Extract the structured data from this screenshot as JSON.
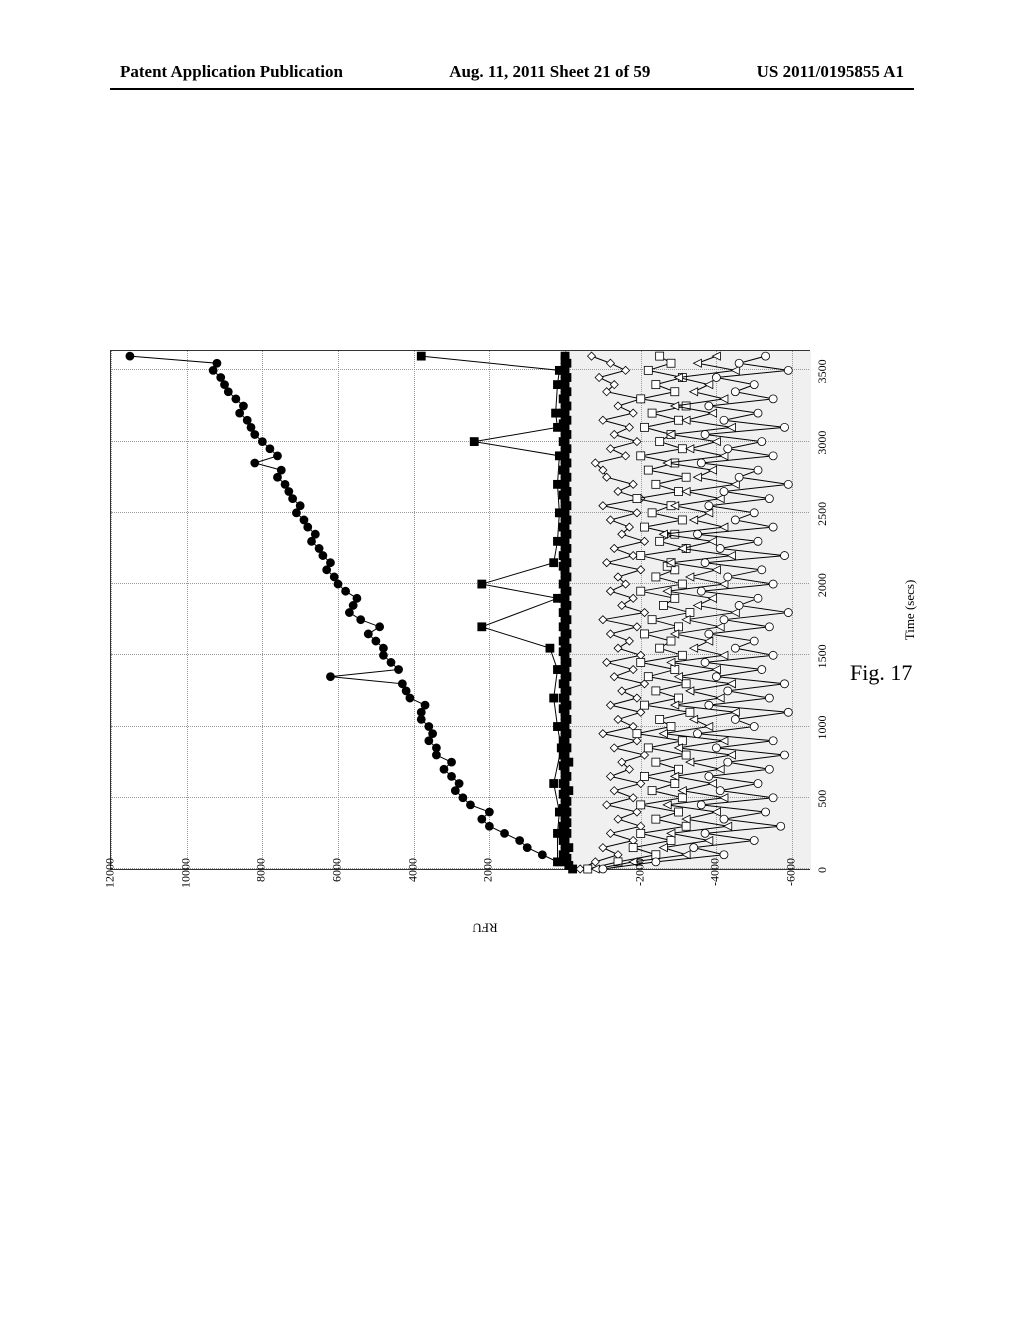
{
  "header": {
    "left": "Patent Application Publication",
    "center": "Aug. 11, 2011  Sheet 21 of 59",
    "right": "US 2011/0195855 A1"
  },
  "figure_label": "Fig. 17",
  "chart": {
    "type": "line",
    "xlabel": "Time (secs)",
    "ylabel": "RFU",
    "xlim": [
      0,
      3650
    ],
    "ylim": [
      -6500,
      12000
    ],
    "xticks": [
      0,
      500,
      1000,
      1500,
      2000,
      2500,
      3000,
      3500
    ],
    "yticks": [
      -6000,
      -4000,
      -2000,
      0,
      2000,
      4000,
      6000,
      8000,
      10000,
      12000
    ],
    "background_color": "#ffffff",
    "band_color": "#f0f0f0",
    "grid_color": "#999999",
    "label_fontsize": 13,
    "tick_fontsize": 12,
    "line_color": "#000000",
    "line_width": 1,
    "marker_size": 4,
    "band_region": [
      -6500,
      0
    ],
    "series": [
      {
        "name": "series_filled_circle",
        "marker": "filled-circle",
        "fill": "#000000",
        "x": [
          50,
          100,
          150,
          200,
          250,
          300,
          350,
          400,
          450,
          500,
          550,
          600,
          650,
          700,
          750,
          800,
          850,
          900,
          950,
          1000,
          1050,
          1100,
          1150,
          1200,
          1250,
          1300,
          1350,
          1400,
          1450,
          1500,
          1550,
          1600,
          1650,
          1700,
          1750,
          1800,
          1850,
          1900,
          1950,
          2000,
          2050,
          2100,
          2150,
          2200,
          2250,
          2300,
          2350,
          2400,
          2450,
          2500,
          2550,
          2600,
          2650,
          2700,
          2750,
          2800,
          2850,
          2900,
          2950,
          3000,
          3050,
          3100,
          3150,
          3200,
          3250,
          3300,
          3350,
          3400,
          3450,
          3500,
          3550,
          3600
        ],
        "y": [
          200,
          600,
          1000,
          1200,
          1600,
          2000,
          2200,
          2000,
          2500,
          2700,
          2900,
          2800,
          3000,
          3200,
          3000,
          3400,
          3400,
          3600,
          3500,
          3600,
          3800,
          3800,
          3700,
          4100,
          4200,
          4300,
          6200,
          4400,
          4600,
          4800,
          4800,
          5000,
          5200,
          4900,
          5400,
          5700,
          5600,
          5500,
          5800,
          6000,
          6100,
          6300,
          6200,
          6400,
          6500,
          6700,
          6600,
          6800,
          6900,
          7100,
          7000,
          7200,
          7300,
          7400,
          7600,
          7500,
          8200,
          7600,
          7800,
          8000,
          8200,
          8300,
          8400,
          8600,
          8500,
          8700,
          8900,
          9000,
          9100,
          9300,
          9200,
          11500
        ]
      },
      {
        "name": "series_filled_square_dense",
        "marker": "filled-square",
        "fill": "#000000",
        "x": [
          0,
          25,
          50,
          75,
          100,
          125,
          150,
          175,
          200,
          225,
          250,
          275,
          300,
          325,
          350,
          375,
          400,
          425,
          450,
          475,
          500,
          525,
          550,
          575,
          600,
          625,
          650,
          675,
          700,
          725,
          750,
          775,
          800,
          825,
          850,
          875,
          900,
          925,
          950,
          975,
          1000,
          1025,
          1050,
          1075,
          1100,
          1125,
          1150,
          1175,
          1200,
          1225,
          1250,
          1275,
          1300,
          1325,
          1350,
          1375,
          1400,
          1425,
          1450,
          1475,
          1500,
          1525,
          1550,
          1575,
          1600,
          1625,
          1650,
          1675,
          1700,
          1725,
          1750,
          1775,
          1800,
          1825,
          1850,
          1875,
          1900,
          1925,
          1950,
          1975,
          2000,
          2025,
          2050,
          2075,
          2100,
          2125,
          2150,
          2175,
          2200,
          2225,
          2250,
          2275,
          2300,
          2325,
          2350,
          2375,
          2400,
          2425,
          2450,
          2475,
          2500,
          2525,
          2550,
          2575,
          2600,
          2625,
          2650,
          2675,
          2700,
          2725,
          2750,
          2775,
          2800,
          2825,
          2850,
          2875,
          2900,
          2925,
          2950,
          2975,
          3000,
          3025,
          3050,
          3075,
          3100,
          3125,
          3150,
          3175,
          3200,
          3225,
          3250,
          3275,
          3300,
          3325,
          3350,
          3375,
          3400,
          3425,
          3450,
          3475,
          3500,
          3525,
          3550,
          3575,
          3600
        ],
        "y": [
          -200,
          -100,
          0,
          -50,
          50,
          0,
          -100,
          0,
          50,
          0,
          -50,
          0,
          50,
          -50,
          0,
          0,
          -50,
          50,
          0,
          -50,
          0,
          50,
          -100,
          0,
          50,
          0,
          -50,
          0,
          0,
          50,
          -100,
          0,
          50,
          0,
          -50,
          0,
          50,
          0,
          -50,
          0,
          50,
          0,
          -50,
          0,
          0,
          50,
          -50,
          0,
          50,
          0,
          -50,
          0,
          50,
          0,
          -50,
          0,
          50,
          0,
          -50,
          0,
          0,
          50,
          -50,
          0,
          50,
          0,
          -50,
          0,
          50,
          0,
          -50,
          0,
          50,
          0,
          -50,
          0,
          50,
          0,
          -50,
          0,
          50,
          0,
          -50,
          0,
          0,
          50,
          -50,
          0,
          50,
          0,
          -50,
          0,
          50,
          0,
          -50,
          0,
          50,
          0,
          -50,
          0,
          50,
          0,
          -50,
          0,
          0,
          50,
          -50,
          0,
          50,
          0,
          -50,
          0,
          50,
          0,
          -50,
          0,
          50,
          0,
          -50,
          0,
          50,
          0,
          -50,
          0,
          0,
          50,
          -50,
          0,
          50,
          0,
          -50,
          0,
          50,
          0,
          -50,
          0,
          50,
          0,
          -50,
          0,
          50,
          0,
          -50,
          0,
          0
        ]
      },
      {
        "name": "series_filled_square_sparse",
        "marker": "filled-square",
        "fill": "#000000",
        "x": [
          50,
          250,
          400,
          600,
          850,
          1000,
          1200,
          1400,
          1550,
          1700,
          1900,
          2000,
          2150,
          2300,
          2500,
          2700,
          2900,
          3000,
          3100,
          3200,
          3400,
          3500,
          3600
        ],
        "y": [
          200,
          200,
          150,
          300,
          100,
          200,
          300,
          200,
          400,
          2200,
          200,
          2200,
          300,
          200,
          150,
          200,
          150,
          2400,
          200,
          250,
          200,
          150,
          3800
        ]
      },
      {
        "name": "series_open_diamond",
        "marker": "open-diamond",
        "fill": "none",
        "x": [
          0,
          50,
          100,
          150,
          200,
          250,
          300,
          350,
          400,
          450,
          500,
          550,
          600,
          650,
          700,
          750,
          800,
          850,
          900,
          950,
          1000,
          1050,
          1100,
          1150,
          1200,
          1250,
          1300,
          1350,
          1400,
          1450,
          1500,
          1550,
          1600,
          1650,
          1700,
          1750,
          1800,
          1850,
          1900,
          1950,
          2000,
          2050,
          2100,
          2150,
          2200,
          2250,
          2300,
          2350,
          2400,
          2450,
          2500,
          2550,
          2600,
          2650,
          2700,
          2750,
          2800,
          2850,
          2900,
          2950,
          3000,
          3050,
          3100,
          3150,
          3200,
          3250,
          3300,
          3350,
          3400,
          3450,
          3500,
          3550,
          3600
        ],
        "y": [
          -400,
          -800,
          -1400,
          -1000,
          -1800,
          -1200,
          -2000,
          -1400,
          -1900,
          -1100,
          -1800,
          -1300,
          -2000,
          -1200,
          -1700,
          -1500,
          -2100,
          -1300,
          -1900,
          -1000,
          -1800,
          -1400,
          -2000,
          -1200,
          -1900,
          -1500,
          -2100,
          -1300,
          -1800,
          -1100,
          -2000,
          -1400,
          -1700,
          -1200,
          -1900,
          -1000,
          -2100,
          -1500,
          -1800,
          -1200,
          -1600,
          -1400,
          -2000,
          -1100,
          -1800,
          -1300,
          -2100,
          -1500,
          -1700,
          -1200,
          -1900,
          -1000,
          -2000,
          -1400,
          -1800,
          -1100,
          -1000,
          -800,
          -1600,
          -1200,
          -1900,
          -1300,
          -1700,
          -1000,
          -1800,
          -1400,
          -2000,
          -1100,
          -1300,
          -900,
          -1600,
          -1200,
          -700
        ]
      },
      {
        "name": "series_open_square",
        "marker": "open-square",
        "fill": "none",
        "x": [
          0,
          50,
          100,
          150,
          200,
          250,
          300,
          350,
          400,
          450,
          500,
          550,
          600,
          650,
          700,
          750,
          800,
          850,
          900,
          950,
          1000,
          1050,
          1100,
          1150,
          1200,
          1250,
          1300,
          1350,
          1400,
          1450,
          1500,
          1550,
          1600,
          1650,
          1700,
          1750,
          1800,
          1850,
          1900,
          1950,
          2000,
          2050,
          2100,
          2125,
          2150,
          2200,
          2250,
          2300,
          2350,
          2400,
          2450,
          2500,
          2550,
          2600,
          2650,
          2700,
          2750,
          2800,
          2850,
          2900,
          2950,
          3000,
          3050,
          3100,
          3150,
          3200,
          3250,
          3300,
          3350,
          3400,
          3450,
          3500,
          3550,
          3600
        ],
        "y": [
          -600,
          -1400,
          -2400,
          -1800,
          -2800,
          -2000,
          -3200,
          -2400,
          -3000,
          -2000,
          -3100,
          -2300,
          -2900,
          -2100,
          -3000,
          -2400,
          -3200,
          -2200,
          -3100,
          -1900,
          -2800,
          -2500,
          -3300,
          -2100,
          -3000,
          -2400,
          -3200,
          -2200,
          -2900,
          -2000,
          -3100,
          -2500,
          -2800,
          -2100,
          -3000,
          -2300,
          -3300,
          -2600,
          -2900,
          -2000,
          -3100,
          -2400,
          -2900,
          -2700,
          -2800,
          -2000,
          -3200,
          -2500,
          -2900,
          -2100,
          -3100,
          -2300,
          -2800,
          -1900,
          -3000,
          -2400,
          -3200,
          -2200,
          -2900,
          -2000,
          -3100,
          -2500,
          -2800,
          -2100,
          -3000,
          -2300,
          -3200,
          -2000,
          -2900,
          -2400,
          -3100,
          -2200,
          -2800,
          -2500
        ]
      },
      {
        "name": "series_open_triangle",
        "marker": "open-triangle",
        "fill": "none",
        "x": [
          0,
          50,
          100,
          150,
          200,
          250,
          300,
          350,
          400,
          450,
          500,
          550,
          600,
          650,
          700,
          750,
          800,
          850,
          900,
          950,
          1000,
          1050,
          1100,
          1150,
          1200,
          1250,
          1300,
          1350,
          1400,
          1450,
          1500,
          1550,
          1600,
          1650,
          1700,
          1750,
          1800,
          1850,
          1900,
          1950,
          2000,
          2050,
          2100,
          2150,
          2200,
          2250,
          2300,
          2350,
          2400,
          2450,
          2500,
          2550,
          2600,
          2650,
          2700,
          2750,
          2800,
          2850,
          2900,
          2950,
          3000,
          3050,
          3100,
          3150,
          3200,
          3250,
          3300,
          3350,
          3400,
          3450,
          3500,
          3550,
          3600
        ],
        "y": [
          -800,
          -1800,
          -3200,
          -2600,
          -3800,
          -2800,
          -4300,
          -3200,
          -4000,
          -2700,
          -4200,
          -3100,
          -3900,
          -2900,
          -4100,
          -3300,
          -4400,
          -3000,
          -4200,
          -2600,
          -3800,
          -3400,
          -4500,
          -2900,
          -4100,
          -3300,
          -4400,
          -3000,
          -4000,
          -2800,
          -4200,
          -3400,
          -3800,
          -2900,
          -4100,
          -3200,
          -4500,
          -3500,
          -3900,
          -2700,
          -4200,
          -3300,
          -4000,
          -2800,
          -4400,
          -3100,
          -3900,
          -2600,
          -4200,
          -3400,
          -3800,
          -2900,
          -4100,
          -3200,
          -4500,
          -3500,
          -3900,
          -2700,
          -4200,
          -3300,
          -4000,
          -2800,
          -4400,
          -3200,
          -3900,
          -2900,
          -4200,
          -3400,
          -3800,
          -3000,
          -4500,
          -3500,
          -4000
        ]
      },
      {
        "name": "series_open_circle",
        "marker": "open-circle",
        "fill": "none",
        "x": [
          0,
          50,
          100,
          150,
          200,
          250,
          300,
          350,
          400,
          450,
          500,
          550,
          600,
          650,
          700,
          750,
          800,
          850,
          900,
          950,
          1000,
          1050,
          1100,
          1150,
          1200,
          1250,
          1300,
          1350,
          1400,
          1450,
          1500,
          1550,
          1600,
          1650,
          1700,
          1750,
          1800,
          1850,
          1900,
          1950,
          2000,
          2050,
          2100,
          2150,
          2200,
          2250,
          2300,
          2350,
          2400,
          2450,
          2500,
          2550,
          2600,
          2650,
          2700,
          2750,
          2800,
          2850,
          2900,
          2950,
          3000,
          3050,
          3100,
          3150,
          3200,
          3250,
          3300,
          3350,
          3400,
          3450,
          3500,
          3550,
          3600
        ],
        "y": [
          -1000,
          -2400,
          -4200,
          -3400,
          -5000,
          -3700,
          -5700,
          -4200,
          -5300,
          -3600,
          -5500,
          -4100,
          -5100,
          -3800,
          -5400,
          -4300,
          -5800,
          -4000,
          -5500,
          -3500,
          -5000,
          -4500,
          -5900,
          -3800,
          -5400,
          -4300,
          -5800,
          -4000,
          -5200,
          -3700,
          -5500,
          -4500,
          -5000,
          -3800,
          -5400,
          -4200,
          -5900,
          -4600,
          -5100,
          -3600,
          -5500,
          -4300,
          -5200,
          -3700,
          -5800,
          -4100,
          -5100,
          -3500,
          -5500,
          -4500,
          -5000,
          -3800,
          -5400,
          -4200,
          -5900,
          -4600,
          -5100,
          -3600,
          -5500,
          -4300,
          -5200,
          -3700,
          -5800,
          -4200,
          -5100,
          -3800,
          -5500,
          -4500,
          -5000,
          -4000,
          -5900,
          -4600,
          -5300
        ]
      }
    ]
  }
}
